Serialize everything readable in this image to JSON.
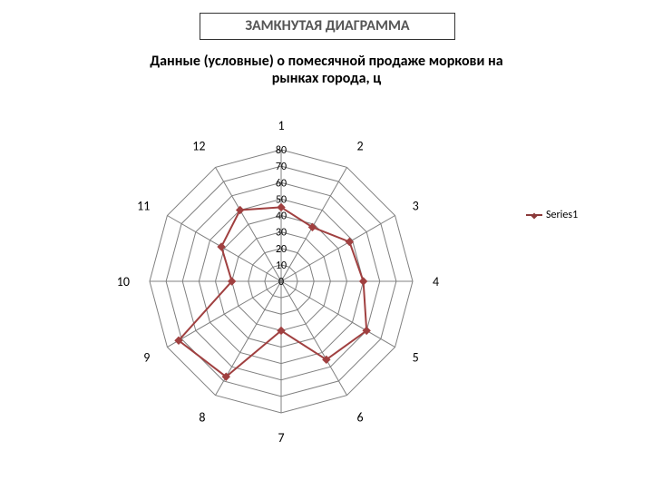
{
  "header": "ЗАМКНУТАЯ ДИАГРАММА",
  "title_line1": "Данные (условные) о помесячной продаже моркови на",
  "title_line2": "рынках города, ц",
  "legend_label": "Series1",
  "radar": {
    "type": "radar",
    "n_axes": 12,
    "axis_labels": [
      "1",
      "2",
      "3",
      "4",
      "5",
      "6",
      "7",
      "8",
      "9",
      "10",
      "11",
      "12"
    ],
    "r_max": 80,
    "ticks": [
      0,
      10,
      20,
      30,
      40,
      50,
      60,
      70,
      80
    ],
    "tick_labels": [
      "0",
      "10",
      "20",
      "30",
      "40",
      "50",
      "60",
      "70",
      "80"
    ],
    "values": [
      45,
      38,
      48,
      50,
      60,
      55,
      30,
      67,
      72,
      30,
      42,
      50
    ],
    "grid_color": "#808080",
    "grid_width": 1,
    "series_color": "#a04040",
    "series_width": 2,
    "marker_size": 4,
    "label_fontsize": 14,
    "tick_fontsize": 12,
    "background": "#ffffff"
  }
}
